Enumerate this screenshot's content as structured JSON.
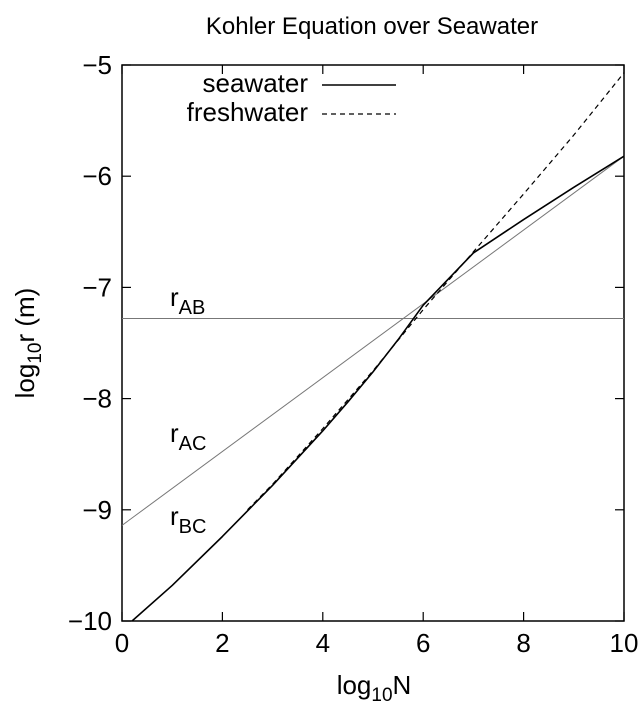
{
  "chart_data": {
    "type": "line",
    "title": "Kohler Equation over Seawater",
    "xlabel": {
      "main": "log",
      "sub": "10",
      "tail": "N"
    },
    "ylabel": {
      "main": "log",
      "sub": "10",
      "tail": "r (m)"
    },
    "xlim": [
      0,
      10
    ],
    "ylim": [
      -10,
      -5
    ],
    "xticks": [
      0,
      2,
      4,
      6,
      8,
      10
    ],
    "xtick_labels": [
      "0",
      "2",
      "4",
      "6",
      "8",
      "10"
    ],
    "yticks": [
      -10,
      -9,
      -8,
      -7,
      -6,
      -5
    ],
    "ytick_labels": [
      "−10",
      "−9",
      "−8",
      "−7",
      "−6",
      "−5"
    ],
    "grid": false,
    "legend": {
      "position": "top-center"
    },
    "series": [
      {
        "name": "seawater",
        "style": "solid",
        "x": [
          0.2,
          1,
          2,
          3,
          4,
          4.5,
          5,
          5.5,
          6,
          7,
          8,
          9,
          10
        ],
        "y": [
          -10,
          -9.68,
          -9.24,
          -8.78,
          -8.29,
          -8.03,
          -7.76,
          -7.47,
          -7.16,
          -6.69,
          -6.39,
          -6.1,
          -5.82
        ]
      },
      {
        "name": "freshwater",
        "style": "dashed",
        "x": [
          2.5,
          3,
          4,
          5,
          6,
          7,
          8,
          9,
          10
        ],
        "y": [
          -9.0,
          -8.77,
          -8.27,
          -7.75,
          -7.2,
          -6.68,
          -6.16,
          -5.63,
          -5.07
        ]
      }
    ],
    "reference_lines": [
      {
        "label_main": "r",
        "label_sub": "AB",
        "x": [
          0,
          10
        ],
        "y": [
          -7.28,
          -7.28
        ]
      },
      {
        "label_main": "r",
        "label_sub": "AC",
        "x": [
          0,
          10
        ],
        "y": [
          -9.14,
          -5.82
        ]
      },
      {
        "label_main": "r",
        "label_sub": "BC"
      }
    ]
  }
}
